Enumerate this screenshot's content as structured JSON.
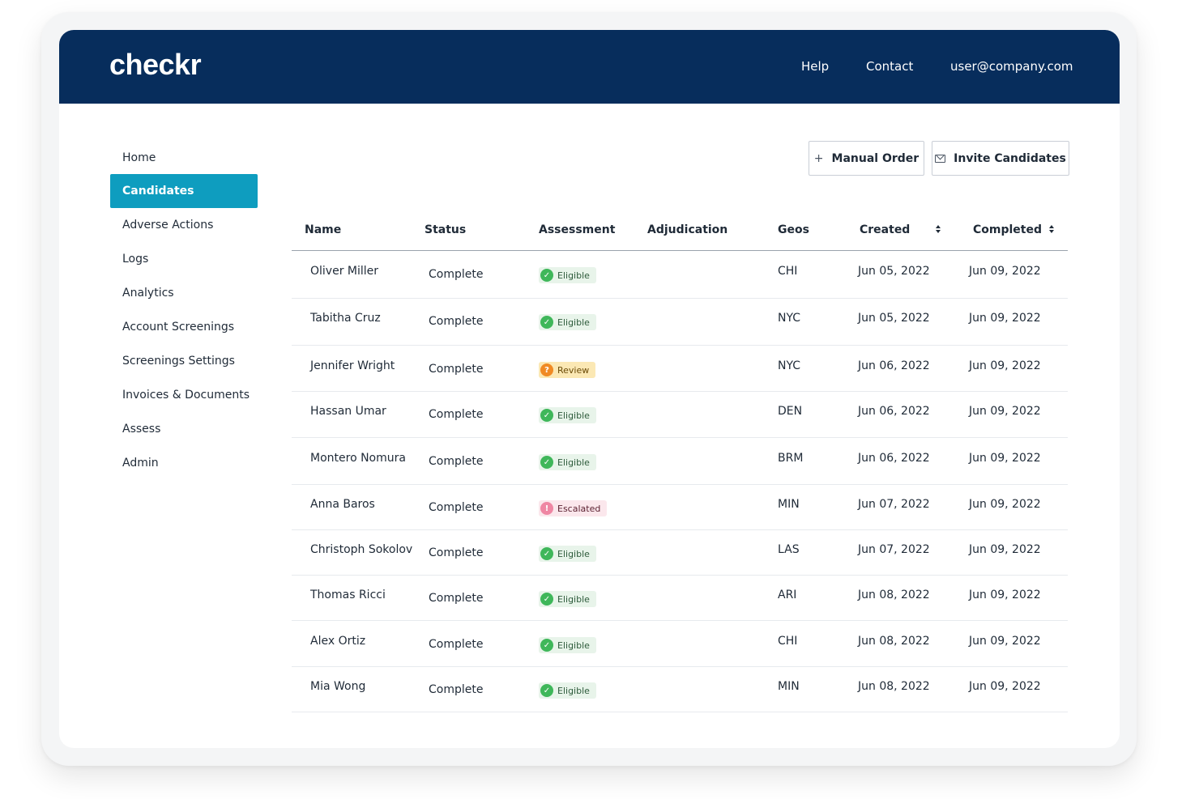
{
  "header": {
    "logo": "checkr",
    "nav": {
      "help": "Help",
      "contact": "Contact",
      "user": "user@company.com"
    }
  },
  "sidebar": {
    "items": [
      {
        "label": "Home"
      },
      {
        "label": "Candidates",
        "active": true
      },
      {
        "label": "Adverse Actions"
      },
      {
        "label": "Logs"
      },
      {
        "label": "Analytics"
      },
      {
        "label": "Account Screenings"
      },
      {
        "label": "Screenings Settings"
      },
      {
        "label": "Invoices & Documents"
      },
      {
        "label": "Assess"
      },
      {
        "label": "Admin"
      }
    ]
  },
  "toolbar": {
    "manual_order_label": "Manual Order",
    "manual_order_icon": "plus-icon",
    "invite_label": "Invite Candidates",
    "invite_icon": "envelope-icon"
  },
  "table": {
    "columns": [
      "Name",
      "Status",
      "Assessment",
      "Adjudication",
      "Geos",
      "Created",
      "Completed"
    ],
    "rows": [
      {
        "name": "Oliver Miller",
        "status": "Complete",
        "assessment": "Eligible",
        "adjudication": "",
        "geo": "CHI",
        "created": "Jun 05, 2022",
        "completed": "Jun 09, 2022"
      },
      {
        "name": "Tabitha Cruz",
        "status": "Complete",
        "assessment": "Eligible",
        "adjudication": "",
        "geo": "NYC",
        "created": "Jun 05, 2022",
        "completed": "Jun 09, 2022"
      },
      {
        "name": "Jennifer Wright",
        "status": "Complete",
        "assessment": "Review",
        "adjudication": "",
        "geo": "NYC",
        "created": "Jun 06, 2022",
        "completed": "Jun 09, 2022"
      },
      {
        "name": "Hassan Umar",
        "status": "Complete",
        "assessment": "Eligible",
        "adjudication": "",
        "geo": "DEN",
        "created": "Jun 06, 2022",
        "completed": "Jun 09, 2022"
      },
      {
        "name": "Montero Nomura",
        "status": "Complete",
        "assessment": "Eligible",
        "adjudication": "",
        "geo": "BRM",
        "created": "Jun 06, 2022",
        "completed": "Jun 09, 2022"
      },
      {
        "name": "Anna Baros",
        "status": "Complete",
        "assessment": "Escalated",
        "adjudication": "",
        "geo": "MIN",
        "created": "Jun 07, 2022",
        "completed": "Jun 09, 2022"
      },
      {
        "name": "Christoph Sokolov",
        "status": "Complete",
        "assessment": "Eligible",
        "adjudication": "",
        "geo": "LAS",
        "created": "Jun 07, 2022",
        "completed": "Jun 09, 2022"
      },
      {
        "name": "Thomas Ricci",
        "status": "Complete",
        "assessment": "Eligible",
        "adjudication": "",
        "geo": "ARI",
        "created": "Jun 08, 2022",
        "completed": "Jun 09, 2022"
      },
      {
        "name": "Alex Ortiz",
        "status": "Complete",
        "assessment": "Eligible",
        "adjudication": "",
        "geo": "CHI",
        "created": "Jun 08, 2022",
        "completed": "Jun 09, 2022"
      },
      {
        "name": "Mia Wong",
        "status": "Complete",
        "assessment": "Eligible",
        "adjudication": "",
        "geo": "MIN",
        "created": "Jun 08, 2022",
        "completed": "Jun 09, 2022"
      }
    ]
  },
  "colors": {
    "header_bg": "#072d5c",
    "active_nav": "#0e9dbf",
    "eligible": "#3fb75a",
    "review": "#f08a24",
    "escalated": "#ef86a3"
  }
}
